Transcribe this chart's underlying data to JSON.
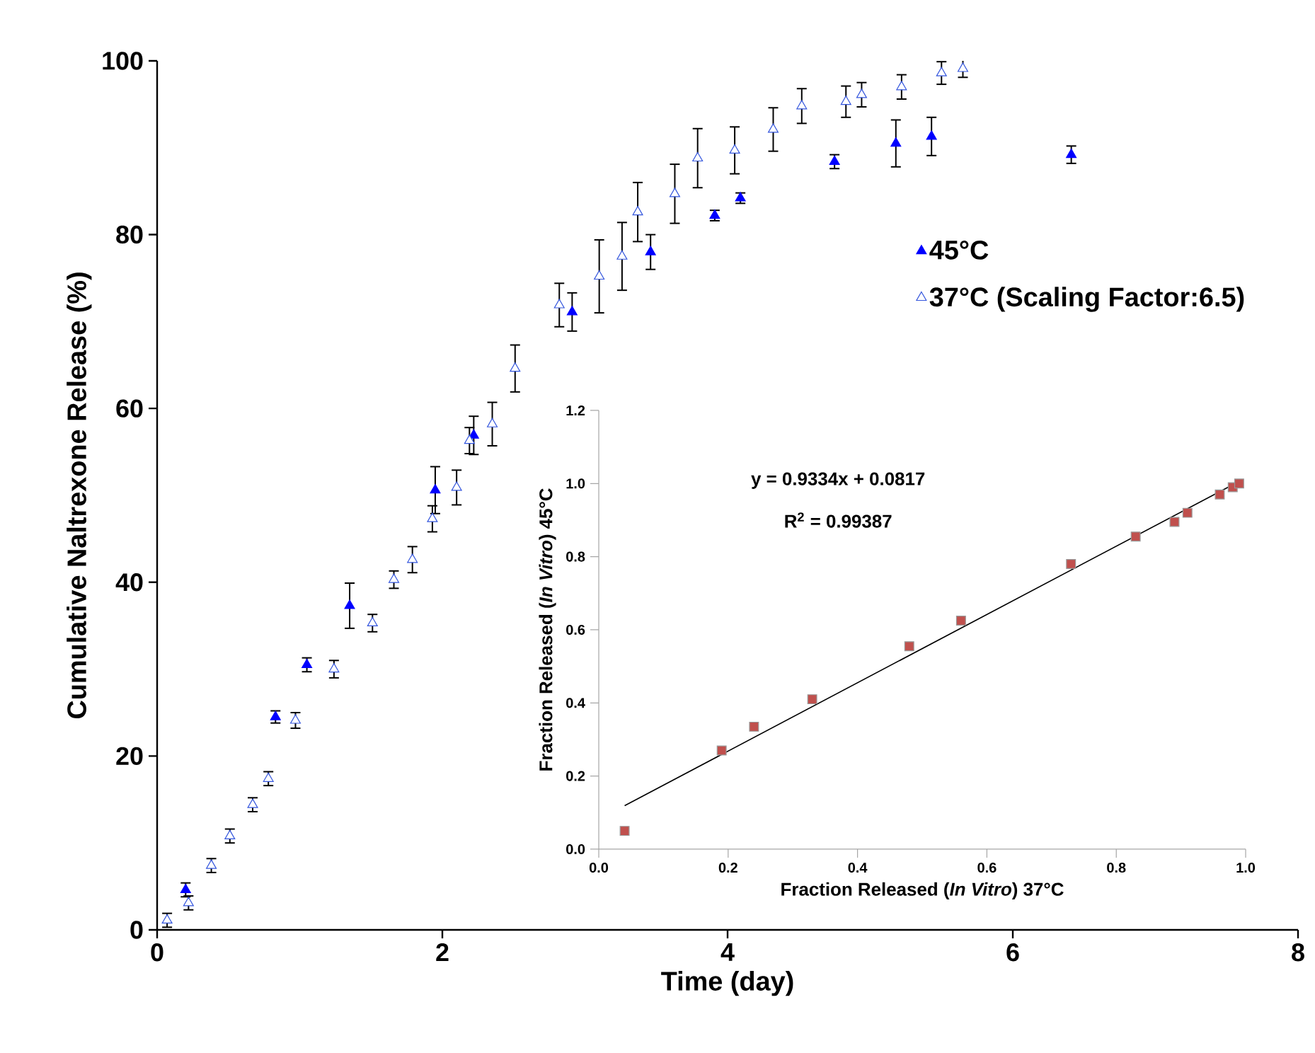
{
  "chart_data": [
    {
      "type": "scatter",
      "xlabel": "Time (day)",
      "ylabel": "Cumulative Naltrexone Release (%)",
      "xlim": [
        0,
        8
      ],
      "ylim": [
        0,
        100
      ],
      "xticks": [
        0,
        2,
        4,
        6,
        8
      ],
      "yticks": [
        0,
        20,
        40,
        60,
        80,
        100
      ],
      "marker": "triangle",
      "legend": "top right",
      "series": [
        {
          "name": "45°C",
          "color": "#0000ff",
          "x": [
            0.2,
            0.83,
            1.05,
            1.35,
            1.95,
            2.22,
            2.91,
            3.46,
            3.91,
            4.09,
            4.75,
            5.18,
            5.43,
            6.41
          ],
          "values": [
            4.6,
            24.5,
            30.5,
            37.3,
            50.6,
            56.9,
            71.1,
            78.0,
            82.2,
            84.2,
            88.4,
            90.5,
            91.3,
            89.2
          ],
          "errors": [
            0.8,
            0.7,
            0.8,
            2.6,
            2.7,
            2.2,
            2.2,
            2.0,
            0.6,
            0.6,
            0.8,
            2.7,
            2.2,
            1.0
          ]
        },
        {
          "name": "37°C (Scaling Factor:6.5)",
          "color": "#3355dd",
          "x": [
            0.07,
            0.22,
            0.38,
            0.51,
            0.67,
            0.78,
            0.97,
            1.24,
            1.51,
            1.66,
            1.79,
            1.93,
            2.1,
            2.19,
            2.35,
            2.51,
            2.82,
            3.1,
            3.26,
            3.37,
            3.63,
            3.79,
            4.05,
            4.32,
            4.52,
            4.83,
            4.94,
            5.22,
            5.5,
            5.65
          ],
          "values": [
            1.1,
            3.1,
            7.4,
            10.8,
            14.4,
            17.4,
            24.1,
            30.0,
            35.3,
            40.3,
            42.6,
            47.3,
            50.9,
            56.3,
            58.2,
            64.6,
            71.9,
            75.2,
            77.5,
            82.6,
            84.7,
            88.8,
            89.7,
            92.1,
            94.8,
            95.3,
            96.1,
            97.0,
            98.6,
            99.1
          ],
          "errors": [
            0.8,
            0.8,
            0.8,
            0.8,
            0.8,
            0.8,
            0.9,
            1.0,
            1.0,
            1.0,
            1.5,
            1.5,
            2.0,
            1.5,
            2.5,
            2.7,
            2.5,
            4.2,
            3.9,
            3.4,
            3.4,
            3.4,
            2.7,
            2.5,
            2.0,
            1.8,
            1.4,
            1.4,
            1.3,
            1.0
          ]
        }
      ]
    },
    {
      "type": "scatter",
      "xlabel": "Fraction Released (*In Vitro*) 37°C",
      "ylabel": "Fraction Released (*In Vitro*) 45°C",
      "xlim": [
        0,
        1
      ],
      "ylim": [
        0,
        1.2
      ],
      "marker": "square",
      "xticks": [
        {
          "value": 0,
          "label": "0.0"
        },
        {
          "value": 0.2,
          "label": "0.2"
        },
        {
          "value": 0.4,
          "label": "0.4"
        },
        {
          "value": 0.6,
          "label": "0.6"
        },
        {
          "value": 0.8,
          "label": "0.8"
        },
        {
          "value": 1,
          "label": "1.0"
        }
      ],
      "yticks": [
        {
          "value": 0,
          "label": "0.0"
        },
        {
          "value": 0.2,
          "label": "0.2"
        },
        {
          "value": 0.4,
          "label": "0.4"
        },
        {
          "value": 0.6,
          "label": "0.6"
        },
        {
          "value": 0.8,
          "label": "0.8"
        },
        {
          "value": 1,
          "label": "1.0"
        },
        {
          "value": 1.2,
          "label": "1.2"
        }
      ],
      "annotations": [
        "y = 0.9334x + 0.0817",
        "R$^{2}$ = 0.99387"
      ],
      "series": [
        {
          "color": "#c0504d",
          "x": [
            0.04,
            0.19,
            0.24,
            0.33,
            0.48,
            0.56,
            0.73,
            0.83,
            0.89,
            0.91,
            0.96,
            0.98,
            0.99
          ],
          "values": [
            0.05,
            0.27,
            0.335,
            0.41,
            0.555,
            0.625,
            0.78,
            0.855,
            0.895,
            0.92,
            0.97,
            0.99,
            1.0
          ]
        },
        {
          "type": "line",
          "marker": "none",
          "color": "#000000",
          "x": [
            0.04,
            0.99
          ],
          "values": [
            0.119,
            1.006
          ]
        }
      ]
    }
  ]
}
